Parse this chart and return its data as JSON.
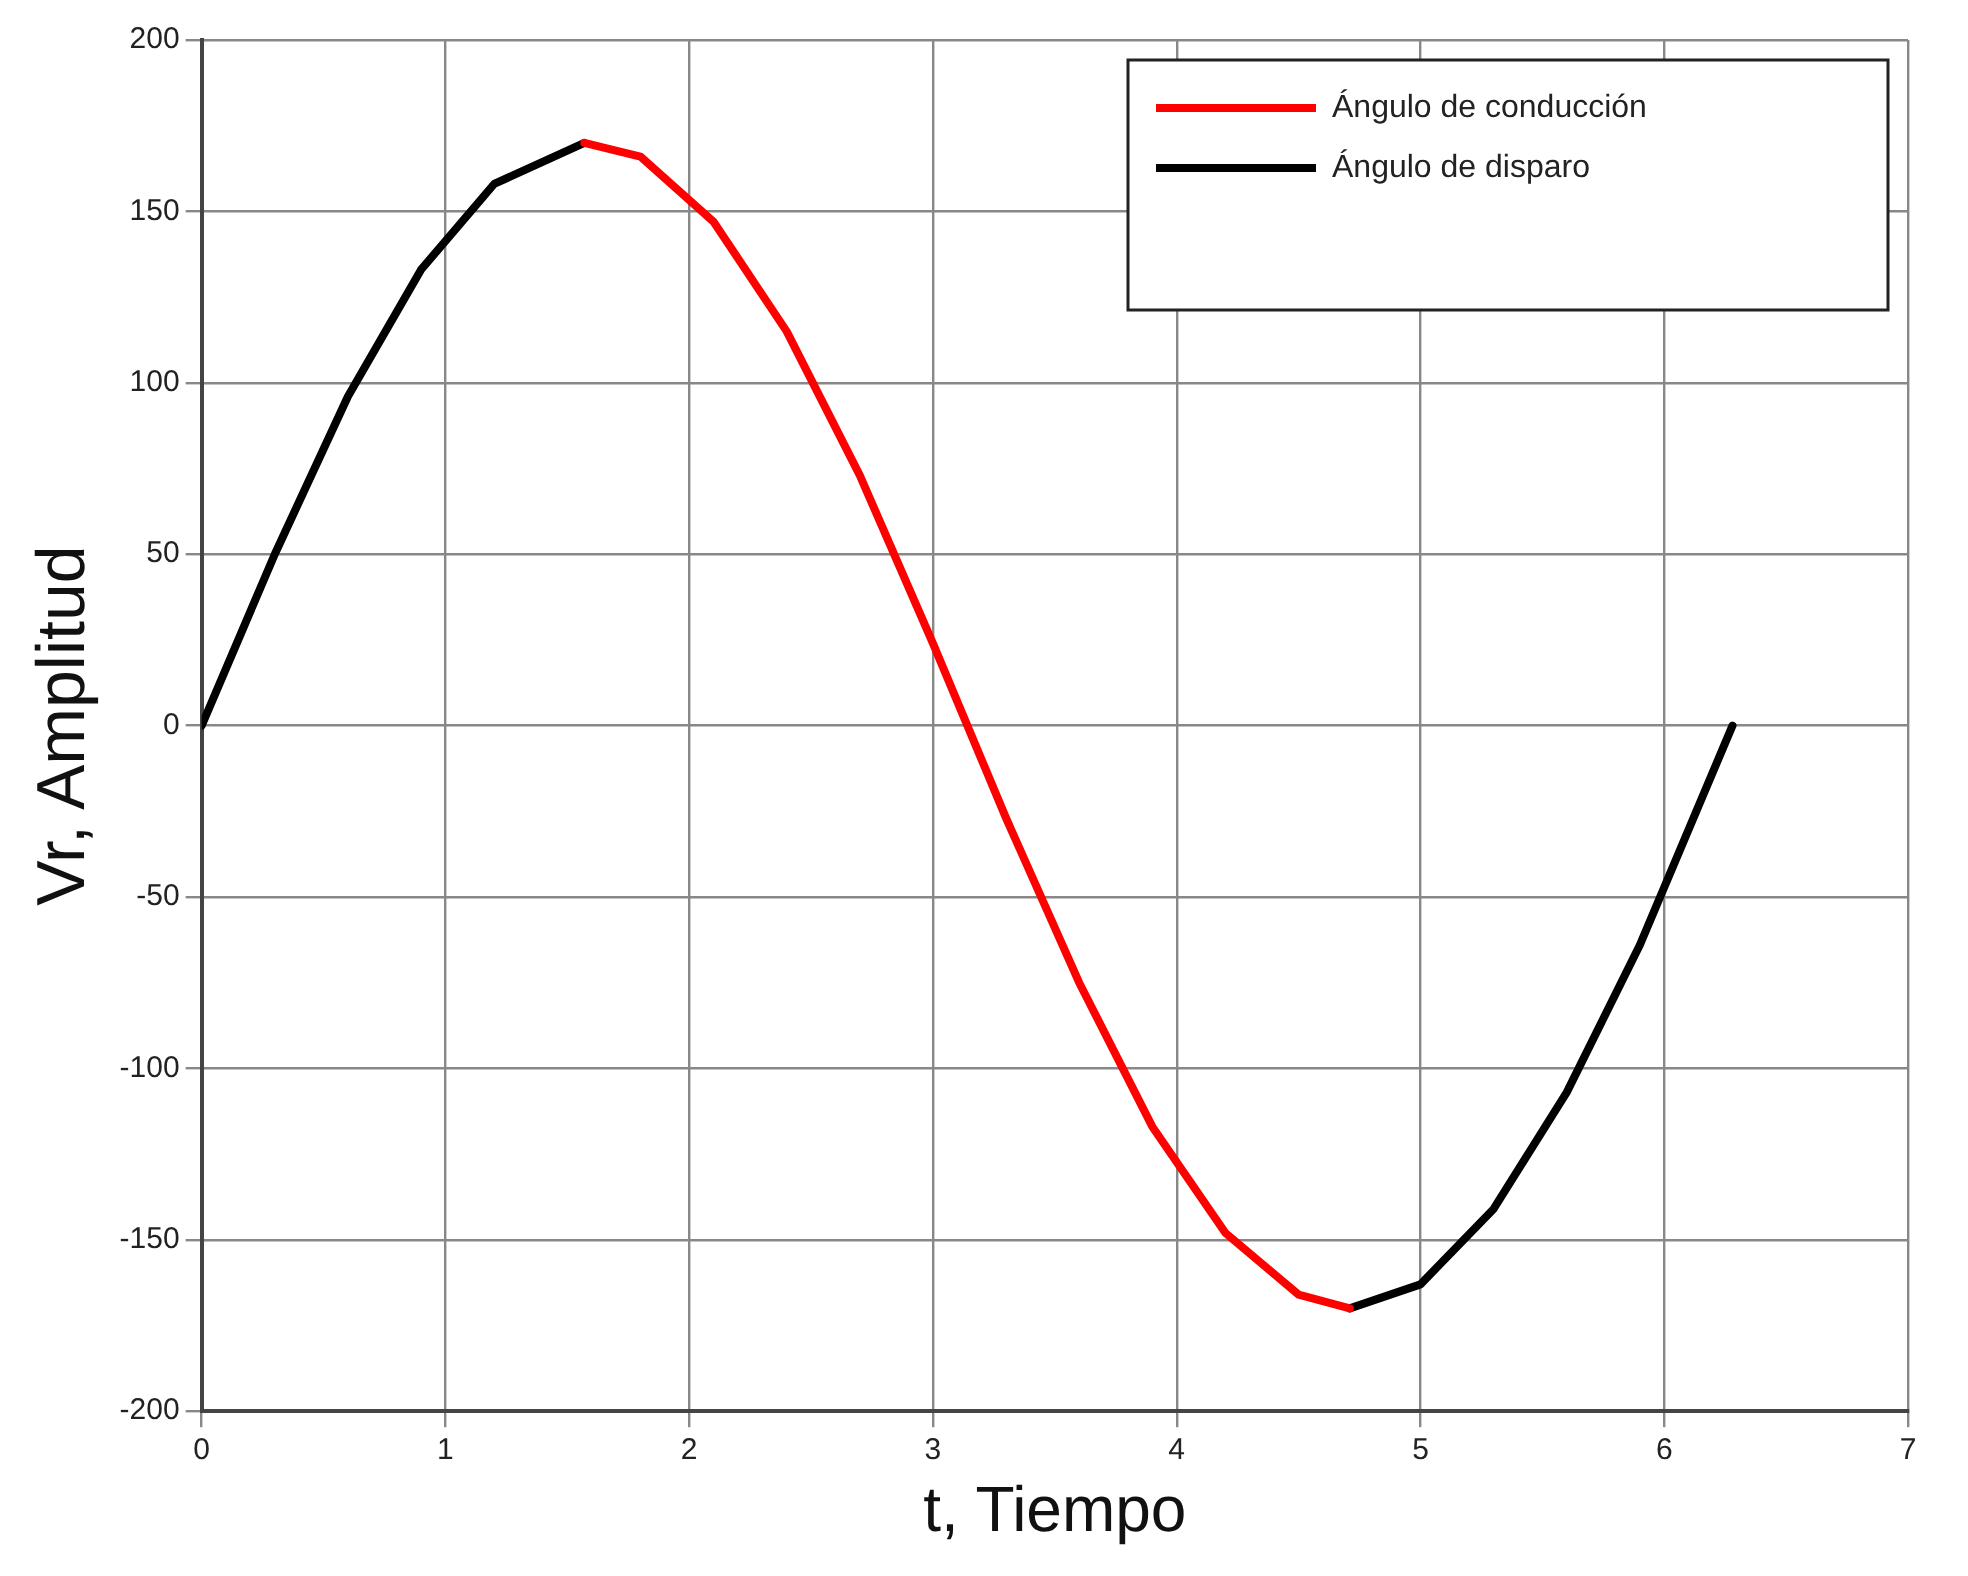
{
  "chart_data": {
    "type": "line",
    "xlabel": "t, Tiempo",
    "ylabel": "Vr, Amplitud",
    "series": [
      {
        "name": "Ángulo de conducción",
        "color": "#ff0000",
        "x": [
          1.57,
          1.8,
          2.1,
          2.4,
          2.7,
          3.0,
          3.3,
          3.6,
          3.9,
          4.2,
          4.5,
          4.71
        ],
        "values": [
          170,
          166,
          147,
          115,
          73,
          24,
          -27,
          -75,
          -117,
          -148,
          -166,
          -170
        ]
      },
      {
        "name": "Ángulo de disparo",
        "color": "#000000",
        "x": [
          0,
          0.3,
          0.6,
          0.9,
          1.2,
          1.57,
          null,
          4.71,
          5.0,
          5.3,
          5.6,
          5.9,
          6.28
        ],
        "values": [
          0,
          50,
          96,
          133,
          158,
          170,
          null,
          -170,
          -163,
          -141,
          -107,
          -64,
          0
        ]
      }
    ],
    "xlim": [
      0,
      7
    ],
    "xticks": [
      0,
      1,
      2,
      3,
      4,
      5,
      6,
      7
    ],
    "ylim": [
      -200,
      200
    ],
    "yticks": [
      -200,
      -150,
      -100,
      -50,
      0,
      50,
      100,
      150,
      200
    ],
    "grid": true,
    "legend": "top right",
    "marker": "none",
    "line_style": "solid"
  }
}
